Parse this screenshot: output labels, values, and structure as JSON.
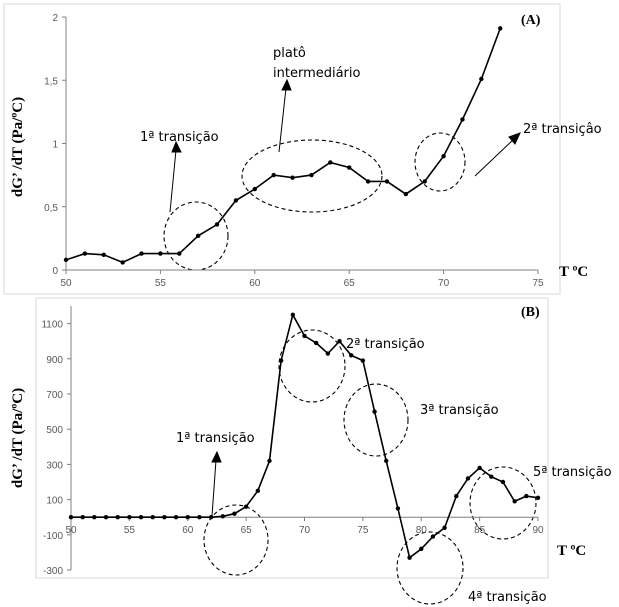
{
  "chart_data": [
    {
      "type": "line",
      "panel_label": "(A)",
      "ylabel": "dG’ /dT (Pa/ºC)",
      "xlabel": "T ºC",
      "xlim": [
        50,
        75
      ],
      "ylim": [
        0,
        2
      ],
      "x_ticks": [
        "50",
        "55",
        "60",
        "65",
        "70",
        "75"
      ],
      "y_ticks": [
        "0",
        "0,5",
        "1",
        "1,5",
        "2"
      ],
      "grid": false,
      "series": [
        {
          "x": [
            50,
            51,
            52,
            53,
            54,
            55,
            56,
            57,
            58,
            59,
            60,
            61,
            62,
            63,
            64,
            65,
            66,
            67,
            68,
            69,
            70,
            71,
            72,
            73
          ],
          "y": [
            0.08,
            0.13,
            0.12,
            0.06,
            0.13,
            0.13,
            0.13,
            0.27,
            0.36,
            0.55,
            0.64,
            0.75,
            0.73,
            0.75,
            0.85,
            0.81,
            0.7,
            0.7,
            0.6,
            0.7,
            0.9,
            1.19,
            1.51,
            1.91
          ]
        }
      ],
      "annotations": [
        {
          "text": "1ª transição"
        },
        {
          "text": "platô"
        },
        {
          "text": "intermediário"
        },
        {
          "text": "2ª transiçâo"
        }
      ]
    },
    {
      "type": "line",
      "panel_label": "(B)",
      "ylabel": "dG’ /dT (Pa/ºC)",
      "xlabel": "T ºC",
      "xlim": [
        50,
        90
      ],
      "ylim": [
        -300,
        1200
      ],
      "x_ticks": [
        "50",
        "55",
        "60",
        "65",
        "70",
        "75",
        "80",
        "85",
        "90"
      ],
      "y_ticks": [
        "-300",
        "-100",
        "100",
        "300",
        "500",
        "700",
        "900",
        "1100"
      ],
      "grid": false,
      "series": [
        {
          "x": [
            50,
            51,
            52,
            53,
            54,
            55,
            56,
            57,
            58,
            59,
            60,
            61,
            62,
            63,
            64,
            65,
            66,
            67,
            68,
            69,
            70,
            71,
            72,
            73,
            74,
            75,
            76,
            77,
            78,
            79,
            80,
            81,
            82,
            83,
            84,
            85,
            86,
            87,
            88,
            89,
            90
          ],
          "y": [
            0,
            0,
            0,
            0,
            0,
            0,
            0,
            0,
            0,
            0,
            0,
            0,
            0,
            5,
            20,
            60,
            150,
            320,
            890,
            1150,
            1030,
            990,
            930,
            1000,
            920,
            890,
            600,
            320,
            50,
            -230,
            -180,
            -110,
            -60,
            120,
            220,
            280,
            230,
            200,
            90,
            120,
            110
          ]
        }
      ],
      "annotations": [
        {
          "text": "1ª transição"
        },
        {
          "text": "2ª transição"
        },
        {
          "text": "3ª transição"
        },
        {
          "text": "4ª transição"
        },
        {
          "text": "5ª transição"
        }
      ]
    }
  ]
}
